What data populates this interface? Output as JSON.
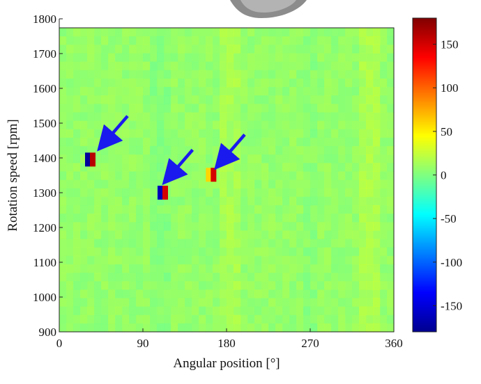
{
  "chart_data": {
    "type": "heatmap",
    "xlabel": "Angular position [°]",
    "ylabel": "Rotation speed [rpm]",
    "xlim": [
      0,
      360
    ],
    "ylim": [
      900,
      1800
    ],
    "x_ticks": [
      "0",
      "90",
      "180",
      "270",
      "360"
    ],
    "y_ticks": [
      "900",
      "1000",
      "1100",
      "1200",
      "1300",
      "1400",
      "1500",
      "1600",
      "1700",
      "1800"
    ],
    "colorbar": {
      "range": [
        -180,
        180
      ],
      "ticks": [
        "-150",
        "-100",
        "-50",
        "0",
        "50",
        "100",
        "150"
      ],
      "colormap": "jet"
    },
    "background_value_range": [
      -20,
      30
    ],
    "hotspots": [
      {
        "angle": 33,
        "speed": 1410,
        "peak_value": 160,
        "min_value": -170
      },
      {
        "angle": 111,
        "speed": 1312,
        "peak_value": 150,
        "min_value": -160
      },
      {
        "angle": 163,
        "speed": 1365,
        "peak_value": 150,
        "min_value": 60
      }
    ],
    "annotations": [
      {
        "type": "arrow",
        "target_angle": 42,
        "target_speed": 1440,
        "color": "#1a1aee"
      },
      {
        "type": "arrow",
        "target_angle": 112,
        "target_speed": 1340,
        "color": "#1a1aee"
      },
      {
        "type": "arrow",
        "target_angle": 168,
        "target_speed": 1385,
        "color": "#1a1aee"
      }
    ],
    "grid": false
  }
}
